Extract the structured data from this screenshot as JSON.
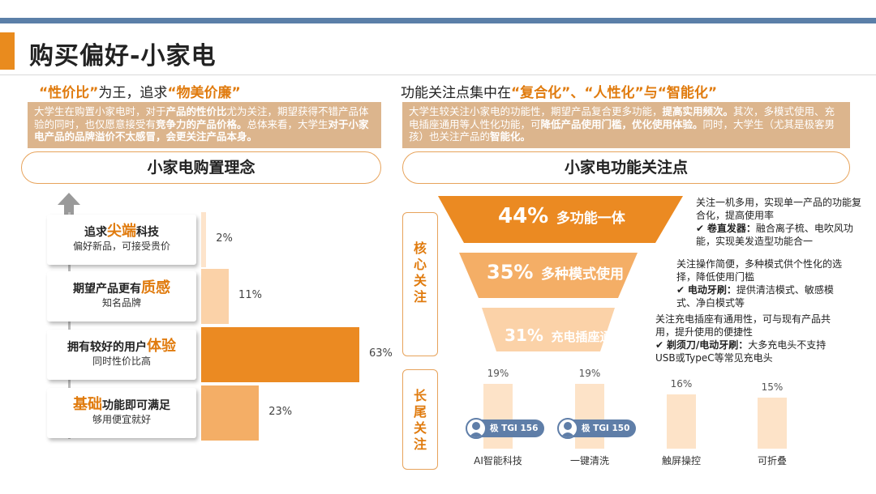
{
  "page": {
    "title": "购买偏好-小家电"
  },
  "left": {
    "headline": {
      "q1": "“性价比”",
      "mid": "为王，追求",
      "q2": "“物美价廉”"
    },
    "summary": {
      "t1": "大学生在购置小家电时，对于",
      "b1": "产品的性价比",
      "t2": "尤为关注，期望获得不错产品体验的同时，也仅愿意接受有",
      "b2": "竞争力的产品价格。",
      "t3": "总体来看，大学生",
      "b3": "对于小家电产品的品牌溢价不太感冒，会更关注产品本身。"
    },
    "pill": "小家电购置理念",
    "categories": [
      {
        "pre": "追求",
        "big": "尖端",
        "post": "科技",
        "sub": "偏好新品，可接受贵价",
        "value": 2,
        "label": "2%"
      },
      {
        "pre": "期望产品更有",
        "big": "质感",
        "post": "",
        "sub": "知名品牌",
        "value": 11,
        "label": "11%"
      },
      {
        "pre": "拥有较好的用户",
        "big": "体验",
        "post": "",
        "sub": "同时性价比高",
        "value": 63,
        "label": "63%"
      },
      {
        "pre": "",
        "big": "基础",
        "post": "功能即可满足",
        "sub": "够用便宜就好",
        "value": 23,
        "label": "23%"
      }
    ],
    "bar_colors": [
      "#fde4cb",
      "#fbd2a8",
      "#eb8a22",
      "#f4ae66"
    ]
  },
  "right": {
    "headline": {
      "t1": "功能关注点集中在",
      "q1": "“复合化”",
      "sep1": "、",
      "q2": "“人性化”",
      "sep2": "与",
      "q3": "“智能化”"
    },
    "summary": {
      "t1": "大学生较关注小家电的功能性，期望产品复合更多功能，",
      "b1": "提高实用频次。",
      "t2": "其次，多模式使用、充电插座通用等人性化功能，可",
      "b2": "降低产品使用门槛，优化使用体验。",
      "t3": "同时，大学生（尤其是极客男孩）也关注产品的",
      "b3": "智能化。"
    },
    "pill": "小家电功能关注点",
    "tag_core": [
      "核",
      "心",
      "关",
      "注"
    ],
    "tag_long": [
      "长",
      "尾",
      "关",
      "注"
    ],
    "funnel": [
      {
        "pct": "44%",
        "name": "多功能一体",
        "desc1": "关注一机多用，实现单一产品的功能复合化，提高使用率",
        "bold": "卷直发器：",
        "desc2": "融合离子梳、电吹风功能，实现美发造型功能合一"
      },
      {
        "pct": "35%",
        "name": "多种模式使用",
        "desc1": "关注操作简便，多种模式供个性化的选择，降低使用门槛",
        "bold": "电动牙刷：",
        "desc2": "提供清洁模式、敏感模式、净白模式等"
      },
      {
        "pct": "31%",
        "name": "充电插座通用",
        "desc1": "关注充电插座有通用性，可与现有产品共用，提升使用的便捷性",
        "bold": "剃须刀/电动牙刷：",
        "desc2": "大多充电头不支持USB或TypeC等常见充电头"
      }
    ],
    "check": "✔",
    "longtail": [
      {
        "name": "AI智能科技",
        "value": 19,
        "label": "19%",
        "tgi": "极 TGI 156"
      },
      {
        "name": "一键清洗",
        "value": 19,
        "label": "19%",
        "tgi": "极 TGI 150"
      },
      {
        "name": "触屏操控",
        "value": 16,
        "label": "16%",
        "tgi": ""
      },
      {
        "name": "可折叠",
        "value": 15,
        "label": "15%",
        "tgi": ""
      }
    ]
  }
}
